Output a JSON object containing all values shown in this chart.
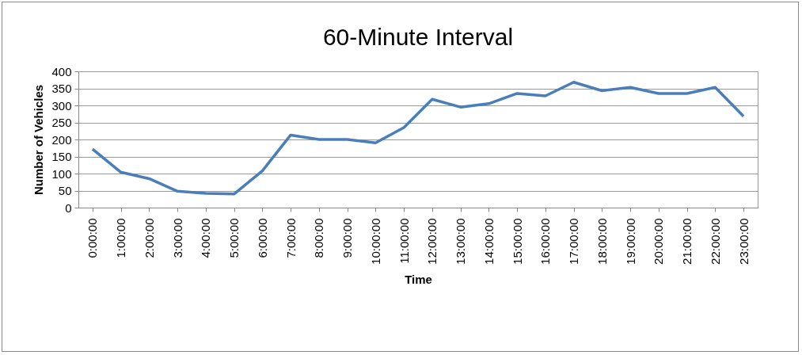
{
  "chart_data": {
    "type": "line",
    "title": "60-Minute Interval",
    "xlabel": "Time",
    "ylabel": "Number of Vehicles",
    "categories": [
      "0:00:00",
      "1:00:00",
      "2:00:00",
      "3:00:00",
      "4:00:00",
      "5:00:00",
      "6:00:00",
      "7:00:00",
      "8:00:00",
      "9:00:00",
      "10:00:00",
      "11:00:00",
      "12:00:00",
      "13:00:00",
      "14:00:00",
      "15:00:00",
      "16:00:00",
      "17:00:00",
      "18:00:00",
      "19:00:00",
      "20:00:00",
      "21:00:00",
      "22:00:00",
      "23:00:00"
    ],
    "series": [
      {
        "color": "#4a7ebb",
        "values": [
          172,
          104,
          85,
          48,
          42,
          40,
          108,
          213,
          200,
          200,
          190,
          235,
          318,
          295,
          305,
          335,
          328,
          368,
          343,
          353,
          335,
          335,
          353,
          268
        ]
      }
    ],
    "ylim": [
      0,
      400
    ],
    "yticks": [
      0,
      50,
      100,
      150,
      200,
      250,
      300,
      350,
      400
    ],
    "grid": "y",
    "legend": false,
    "marker": "none",
    "line_style": "solid"
  }
}
